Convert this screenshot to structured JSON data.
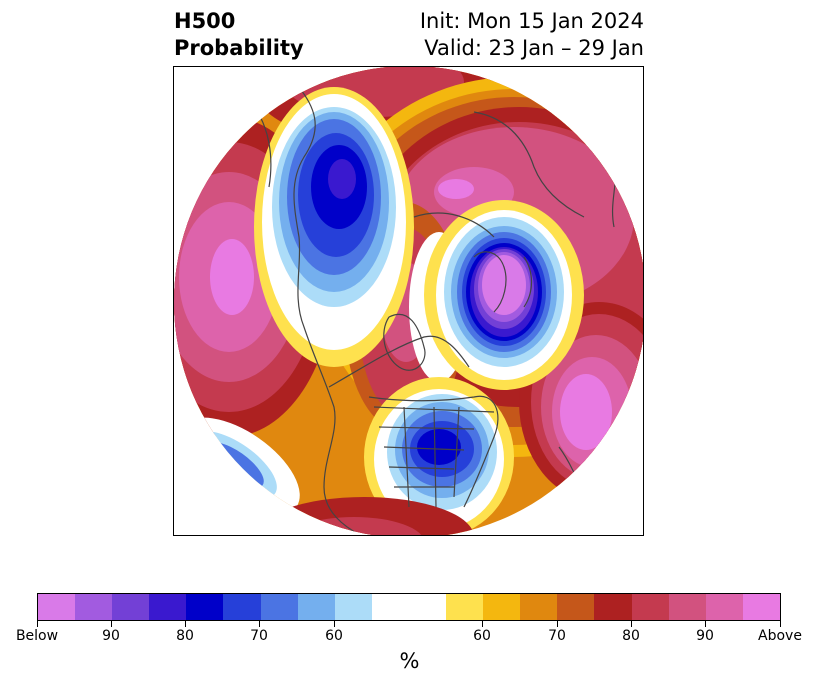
{
  "title": {
    "left_line1": "H500",
    "left_line2": "Probability",
    "right_line1": "Init: Mon 15 Jan 2024",
    "right_line2": "Valid: 23 Jan – 29 Jan"
  },
  "colorbar": {
    "label": "%",
    "colors": [
      "#d97ae8",
      "#a25be0",
      "#7340d6",
      "#3a19cf",
      "#0000c9",
      "#2640d9",
      "#4b74e3",
      "#74afee",
      "#acdcf8",
      "#ffffff",
      "#ffffff",
      "#fee14e",
      "#f4b70f",
      "#e0880f",
      "#c5571a",
      "#ad2121",
      "#c43a4f",
      "#d2527f",
      "#dd63ab",
      "#e87ae2"
    ],
    "tick_labels": [
      "Below",
      "90",
      "80",
      "70",
      "60",
      "60",
      "70",
      "80",
      "90",
      "Above"
    ]
  },
  "map": {
    "projection": "north-polar-stereographic",
    "variable": "500 hPa height anomaly probability",
    "features": [
      {
        "name": "alaska-low",
        "sign": "below",
        "peak": 80
      },
      {
        "name": "polar-low",
        "sign": "below",
        "peak": 95
      },
      {
        "name": "eastern-us-low",
        "sign": "below",
        "peak": 80
      },
      {
        "name": "north-pacific-high",
        "sign": "above",
        "peak": 95
      },
      {
        "name": "north-atlantic-high",
        "sign": "above",
        "peak": 95
      },
      {
        "name": "arctic-high",
        "sign": "above",
        "peak": 95
      },
      {
        "name": "central-canada-high",
        "sign": "above",
        "peak": 85
      }
    ]
  }
}
